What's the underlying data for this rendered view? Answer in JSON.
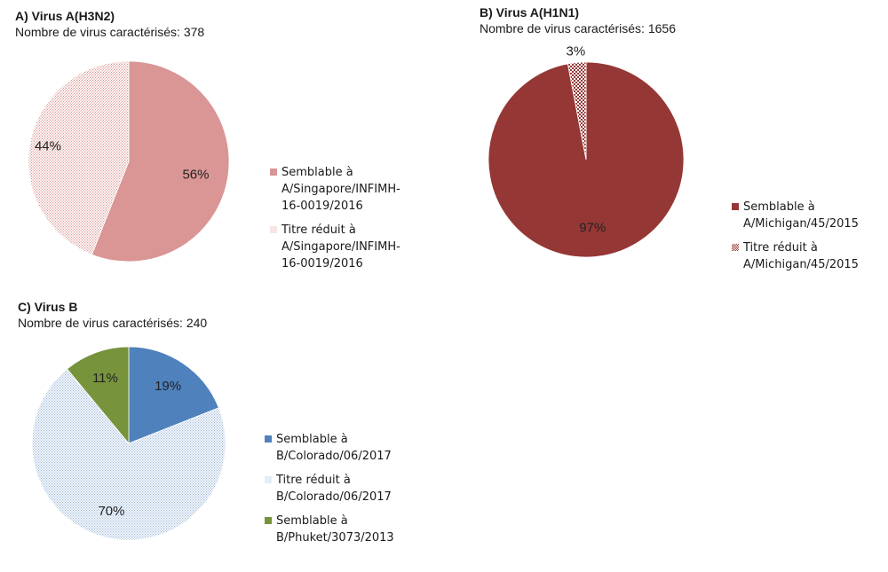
{
  "chart_data": [
    {
      "type": "pie",
      "title": "A) Virus A(H3N2)",
      "subtitle": "Nombre de virus caractérisés: 378",
      "slices": [
        {
          "label": "Semblable à\nA/Singapore/INFIMH-\n16-0019/2016",
          "value": 56,
          "display": "56%",
          "color": "#d99694",
          "pattern": "solid"
        },
        {
          "label": "Titre réduit à\nA/Singapore/INFIMH-\n16-0019/2016",
          "value": 44,
          "display": "44%",
          "color": "#d99694",
          "pattern": "dots"
        }
      ]
    },
    {
      "type": "pie",
      "title": "B) Virus A(H1N1)",
      "subtitle": "Nombre de virus caractérisés: 1656",
      "slices": [
        {
          "label": "Semblable à\nA/Michigan/45/2015",
          "value": 97,
          "display": "97%",
          "color": "#953735",
          "pattern": "solid"
        },
        {
          "label": "Titre réduit à\nA/Michigan/45/2015",
          "value": 3,
          "display": "3%",
          "color": "#953735",
          "pattern": "checker"
        }
      ]
    },
    {
      "type": "pie",
      "title": "C) Virus B",
      "subtitle": "Nombre de virus caractérisés: 240",
      "slices": [
        {
          "label": "Semblable à\nB/Colorado/06/2017",
          "value": 19,
          "display": "19%",
          "color": "#4f81bd",
          "pattern": "solid"
        },
        {
          "label": "Titre réduit à\nB/Colorado/06/2017",
          "value": 70,
          "display": "70%",
          "color": "#95b3d7",
          "pattern": "dots"
        },
        {
          "label": "Semblable à\nB/Phuket/3073/2013",
          "value": 11,
          "display": "11%",
          "color": "#77933c",
          "pattern": "solid"
        }
      ]
    }
  ]
}
